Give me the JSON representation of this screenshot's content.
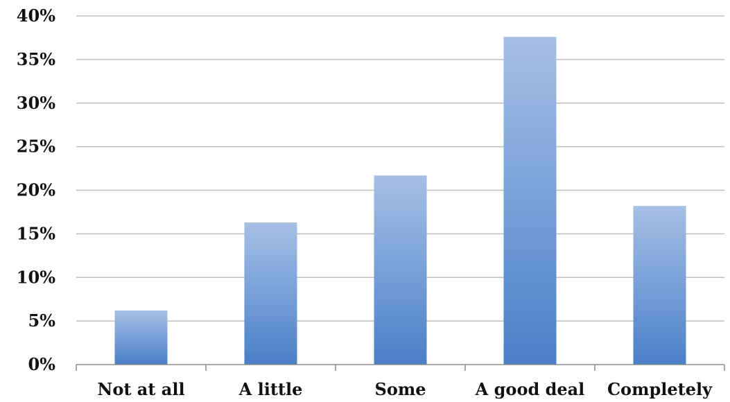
{
  "chart_data": {
    "type": "bar",
    "title": "",
    "xlabel": "",
    "ylabel": "",
    "categories": [
      "Not at all",
      "A little",
      "Some",
      "A good deal",
      "Completely"
    ],
    "values": [
      6.2,
      16.3,
      21.7,
      37.6,
      18.2
    ],
    "ylim": [
      0,
      40
    ],
    "yticks": [
      0,
      5,
      10,
      15,
      20,
      25,
      30,
      35,
      40
    ],
    "ytick_labels": [
      "0%",
      "5%",
      "10%",
      "15%",
      "20%",
      "25%",
      "30%",
      "35%",
      "40%"
    ],
    "grid": true,
    "colors": {
      "bar_top": "#a6c0e6",
      "bar_bottom": "#4a80c8",
      "grid": "#bdbdbd",
      "axis": "#8c8c8c"
    }
  }
}
